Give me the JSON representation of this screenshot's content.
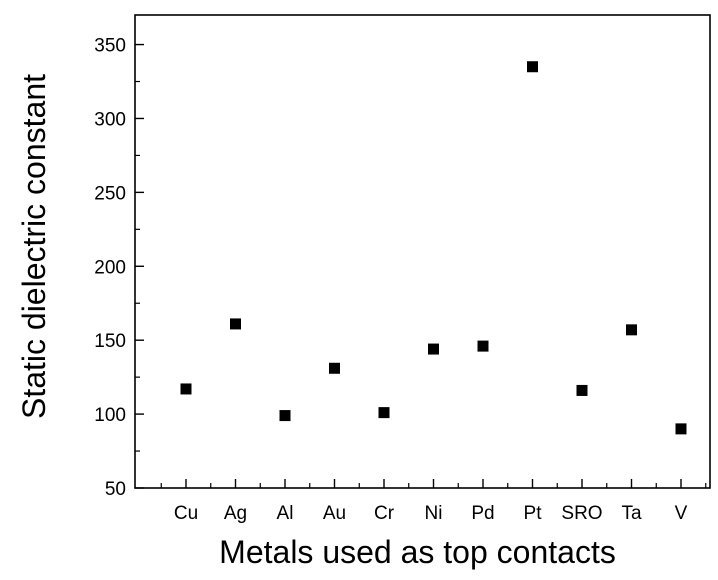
{
  "chart_data": {
    "type": "scatter",
    "title": "",
    "xlabel": "Metals used as top contacts",
    "ylabel": "Static dielectric constant",
    "categories": [
      "Cu",
      "Ag",
      "Al",
      "Au",
      "Cr",
      "Ni",
      "Pd",
      "Pt",
      "SRO",
      "Ta",
      "V"
    ],
    "values": [
      117,
      161,
      99,
      131,
      101,
      144,
      146,
      335,
      116,
      157,
      90
    ],
    "ylim": [
      50,
      370
    ],
    "yticks": [
      50,
      100,
      150,
      200,
      250,
      300,
      350
    ],
    "y_minor_step": 25,
    "x_minor_between": true,
    "grid": false,
    "legend": "none",
    "marker": "square",
    "marker_color": "#000000"
  }
}
